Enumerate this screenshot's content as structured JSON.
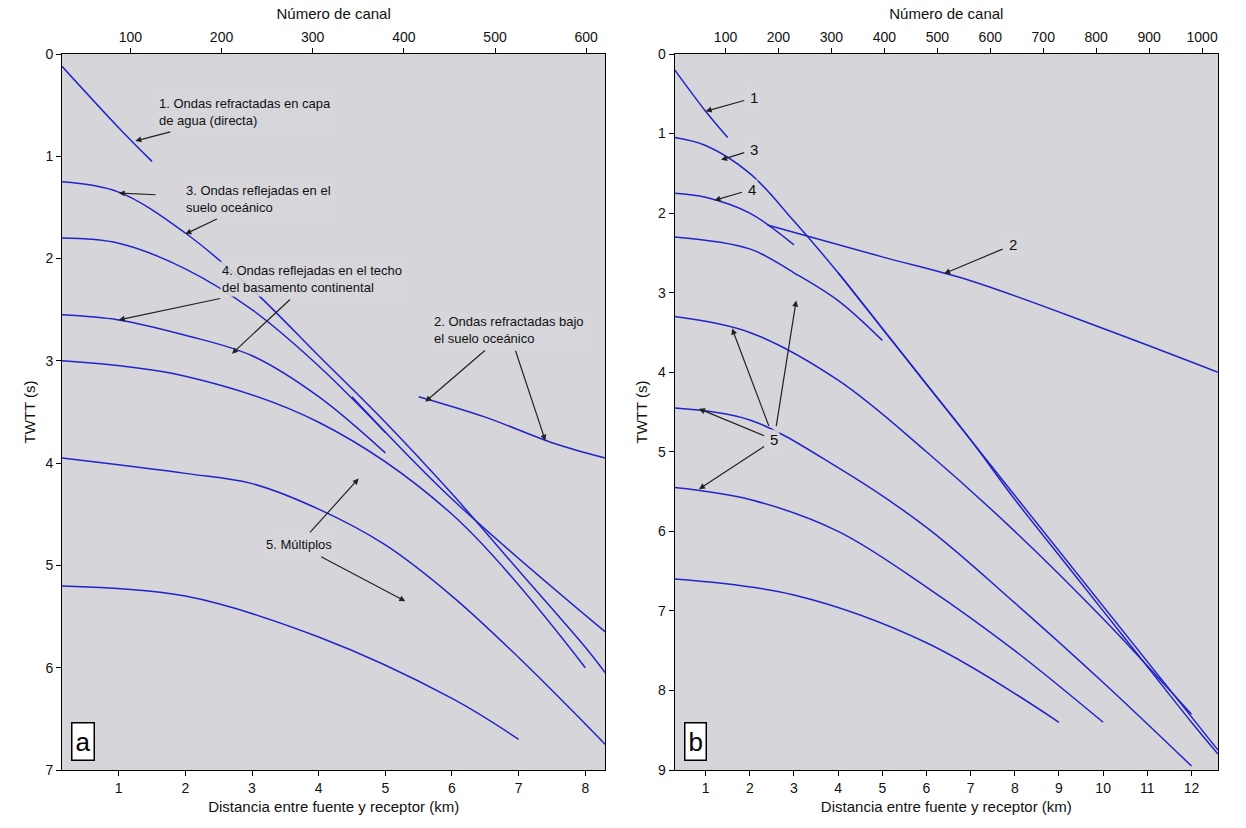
{
  "chart_data": [
    {
      "type": "line",
      "panel": "a",
      "xlabel": "Distancia entre fuente y receptor (km)",
      "x2label": "Número de canal",
      "ylabel": "TWTT (s)",
      "xlim": [
        0.15,
        8.3
      ],
      "xticks": [
        1,
        2,
        3,
        4,
        5,
        6,
        7,
        8
      ],
      "x2lim": [
        25,
        621
      ],
      "x2ticks": [
        100,
        200,
        300,
        400,
        500,
        600
      ],
      "ylim": [
        7,
        0
      ],
      "yticks": [
        0,
        1,
        2,
        3,
        4,
        5,
        6,
        7
      ],
      "grid": false,
      "color": "#2323c8",
      "series": [
        {
          "x": [
            0.15,
            1.0,
            1.5
          ],
          "values": [
            0.12,
            0.72,
            1.05
          ]
        },
        {
          "x": [
            0.15,
            1,
            2,
            3,
            4,
            5,
            6,
            7,
            8,
            8.3
          ],
          "values": [
            1.25,
            1.35,
            1.75,
            2.3,
            2.95,
            3.6,
            4.3,
            5.05,
            5.8,
            6.05
          ]
        },
        {
          "x": [
            0.15,
            1,
            2,
            3,
            4,
            5
          ],
          "values": [
            1.8,
            1.85,
            2.1,
            2.5,
            3.05,
            3.7
          ]
        },
        {
          "x": [
            0.15,
            1,
            2,
            3,
            4,
            5
          ],
          "values": [
            2.55,
            2.6,
            2.75,
            2.95,
            3.35,
            3.9
          ]
        },
        {
          "x": [
            0.15,
            2,
            4,
            6,
            8
          ],
          "values": [
            3.0,
            3.15,
            3.6,
            4.5,
            6.0
          ]
        },
        {
          "x": [
            0.15,
            2,
            3,
            4,
            5,
            6,
            7,
            8,
            8.3
          ],
          "values": [
            3.95,
            4.1,
            4.2,
            4.45,
            4.8,
            5.3,
            5.9,
            6.55,
            6.75
          ]
        },
        {
          "x": [
            0.15,
            2,
            4,
            6,
            7
          ],
          "values": [
            5.2,
            5.3,
            5.7,
            6.3,
            6.7
          ]
        },
        {
          "x": [
            5.5,
            6.5,
            7.5,
            8.3
          ],
          "values": [
            3.35,
            3.55,
            3.8,
            3.95
          ]
        },
        {
          "x": [
            4.5,
            6,
            8.3
          ],
          "values": [
            3.35,
            4.35,
            5.65
          ]
        }
      ],
      "annotations": [
        {
          "text": [
            "1. Ondas refractadas en capa",
            "de agua (directa)"
          ],
          "text_x": 2.9,
          "text_y": 0.57,
          "arrows": [
            [
              1.25,
              0.85
            ]
          ]
        },
        {
          "text": [
            "3. Ondas reflejadas en el",
            "suelo oceánico"
          ],
          "text_x": 3.1,
          "text_y": 1.42,
          "arrows": [
            [
              1.0,
              1.36
            ],
            [
              2.0,
              1.76
            ]
          ]
        },
        {
          "text": [
            "4. Ondas reflejadas en el techo",
            "del basamento continental"
          ],
          "text_x": 3.9,
          "text_y": 2.2,
          "arrows": [
            [
              1.0,
              2.6
            ],
            [
              2.7,
              2.93
            ]
          ]
        },
        {
          "text": [
            "2. Ondas refractadas bajo",
            "el suelo oceánico"
          ],
          "text_x": 6.85,
          "text_y": 2.7,
          "arrows": [
            [
              5.6,
              3.4
            ],
            [
              7.4,
              3.78
            ]
          ]
        },
        {
          "text": [
            "5. Múltiplos"
          ],
          "text_x": 3.7,
          "text_y": 4.8,
          "arrows": [
            [
              4.6,
              4.15
            ],
            [
              5.3,
              5.35
            ]
          ]
        }
      ]
    },
    {
      "type": "line",
      "panel": "b",
      "xlabel": "Distancia entre fuente y receptor (km)",
      "x2label": "Número de canal",
      "ylabel": "TWTT (s)",
      "xlim": [
        0.3,
        12.6
      ],
      "xticks": [
        1,
        2,
        3,
        4,
        5,
        6,
        7,
        8,
        9,
        10,
        11,
        12
      ],
      "x2lim": [
        4,
        1030
      ],
      "x2ticks": [
        100,
        200,
        300,
        400,
        500,
        600,
        700,
        800,
        900,
        1000
      ],
      "ylim": [
        9,
        0
      ],
      "yticks": [
        0,
        1,
        2,
        3,
        4,
        5,
        6,
        7,
        8,
        9
      ],
      "grid": false,
      "color": "#2323c8",
      "series": [
        {
          "x": [
            0.3,
            1.0,
            1.5
          ],
          "values": [
            0.2,
            0.72,
            1.05
          ]
        },
        {
          "x": [
            0.3,
            1,
            2,
            3,
            4,
            5,
            6,
            7,
            8,
            9,
            10,
            11,
            12,
            12.6
          ],
          "values": [
            1.05,
            1.15,
            1.5,
            2.1,
            2.75,
            3.45,
            4.15,
            4.85,
            5.6,
            6.3,
            7.0,
            7.7,
            8.4,
            8.8
          ]
        },
        {
          "x": [
            0.3,
            1,
            2,
            3
          ],
          "values": [
            1.75,
            1.8,
            2.0,
            2.4
          ]
        },
        {
          "x": [
            0.3,
            2,
            3,
            4,
            5
          ],
          "values": [
            2.3,
            2.45,
            2.75,
            3.1,
            3.6
          ]
        },
        {
          "x": [
            2.4,
            5,
            7,
            10,
            12.6
          ],
          "values": [
            2.15,
            2.55,
            2.85,
            3.45,
            4.0
          ]
        },
        {
          "x": [
            4,
            8,
            12.6
          ],
          "values": [
            2.75,
            5.55,
            8.75
          ]
        },
        {
          "x": [
            0.3,
            2,
            4,
            6,
            8,
            10,
            12
          ],
          "values": [
            3.3,
            3.5,
            4.1,
            5.0,
            6.0,
            7.1,
            8.3
          ]
        },
        {
          "x": [
            0.3,
            2,
            4,
            6,
            8,
            10,
            12
          ],
          "values": [
            4.45,
            4.6,
            5.2,
            5.95,
            6.9,
            7.9,
            8.95
          ]
        },
        {
          "x": [
            0.3,
            2,
            4,
            6,
            8,
            10
          ],
          "values": [
            5.45,
            5.6,
            6.0,
            6.7,
            7.5,
            8.4
          ]
        },
        {
          "x": [
            0.3,
            3,
            6,
            9
          ],
          "values": [
            6.6,
            6.8,
            7.4,
            8.4
          ]
        }
      ],
      "annotations": [
        {
          "text": [
            "1"
          ],
          "text_x": 2.1,
          "text_y": 0.55,
          "arrows": [
            [
              1.0,
              0.72
            ]
          ]
        },
        {
          "text": [
            "3"
          ],
          "text_x": 2.1,
          "text_y": 1.2,
          "arrows": [
            [
              1.35,
              1.33
            ]
          ]
        },
        {
          "text": [
            "4"
          ],
          "text_x": 2.05,
          "text_y": 1.7,
          "arrows": [
            [
              1.2,
              1.84
            ]
          ]
        },
        {
          "text": [
            "2"
          ],
          "text_x": 7.95,
          "text_y": 2.4,
          "arrows": [
            [
              6.4,
              2.76
            ]
          ]
        },
        {
          "text": [
            "5"
          ],
          "text_x": 2.55,
          "text_y": 4.85,
          "arrows": [
            [
              1.6,
              3.45
            ],
            [
              3.05,
              3.1
            ],
            [
              0.85,
              4.46
            ],
            [
              0.85,
              5.47
            ]
          ]
        }
      ]
    }
  ]
}
